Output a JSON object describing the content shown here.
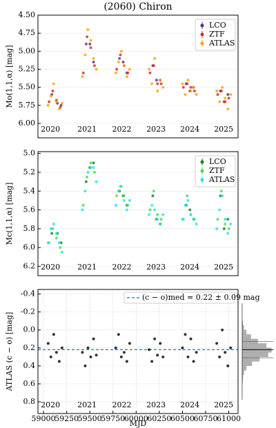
{
  "chart_data": [
    {
      "type": "scatter",
      "title": "(2060) Chiron",
      "ylabel": "Mo(1,1,α) [mag]",
      "xlim": [
        58940,
        61100
      ],
      "ylim": [
        4.5,
        6.2
      ],
      "y_inverted": true,
      "grid": true,
      "legend": "upper right",
      "yticks": [
        {
          "value": 4.5,
          "label": "4.50"
        },
        4.75,
        {
          "value": 5,
          "label": "5.00"
        },
        5.25,
        {
          "value": 5.5,
          "label": "5.50"
        },
        5.75,
        {
          "value": 6,
          "label": "6.00"
        }
      ],
      "annotations": [
        {
          "text": "2020",
          "x": 59075
        },
        {
          "text": "2021",
          "x": 59470
        },
        {
          "text": "2022",
          "x": 59845
        },
        {
          "text": "2023",
          "x": 60215
        },
        {
          "text": "2024",
          "x": 60580
        },
        {
          "text": "2025",
          "x": 60945
        }
      ],
      "series": [
        {
          "name": "LCO",
          "color": "#5b2a86",
          "x": [
            59090,
            59150,
            59190,
            59460,
            59500,
            59540,
            59820,
            59860,
            59900,
            60180,
            60220,
            60260,
            60540,
            60580,
            60620,
            60910,
            60950,
            60990
          ],
          "values": [
            5.6,
            5.72,
            5.75,
            4.9,
            4.9,
            5.15,
            5.1,
            5.15,
            5.3,
            5.2,
            5.4,
            5.4,
            5.45,
            5.55,
            5.5,
            5.55,
            5.7,
            5.6
          ]
        },
        {
          "name": "ZTF",
          "color": "#d62728",
          "x": [
            59060,
            59100,
            59140,
            59180,
            59430,
            59470,
            59510,
            59550,
            59790,
            59830,
            59870,
            59910,
            60150,
            60190,
            60230,
            60270,
            60510,
            60550,
            60590,
            60630,
            60880,
            60920,
            60960,
            61000
          ],
          "values": [
            5.7,
            5.55,
            5.68,
            5.78,
            5.3,
            4.8,
            4.95,
            5.2,
            5.25,
            5.05,
            5.2,
            5.3,
            5.3,
            5.2,
            5.45,
            5.45,
            5.5,
            5.45,
            5.5,
            5.55,
            5.6,
            5.55,
            5.7,
            5.65
          ]
        },
        {
          "name": "ATLAS",
          "color": "#f5a300",
          "x": [
            59050,
            59080,
            59110,
            59140,
            59170,
            59200,
            59420,
            59450,
            59480,
            59510,
            59540,
            59570,
            59780,
            59810,
            59840,
            59870,
            59900,
            59930,
            60140,
            60170,
            60200,
            60230,
            60260,
            60290,
            60500,
            60530,
            60560,
            60590,
            60620,
            60650,
            60870,
            60900,
            60930,
            60960,
            60990,
            61020
          ],
          "values": [
            5.75,
            5.62,
            5.45,
            5.7,
            5.8,
            5.72,
            5.35,
            5.05,
            4.7,
            4.85,
            5.1,
            5.25,
            5.3,
            5.15,
            5.0,
            5.2,
            5.35,
            5.25,
            5.25,
            5.45,
            5.1,
            5.55,
            5.4,
            5.5,
            5.45,
            5.6,
            5.4,
            5.55,
            5.5,
            5.6,
            5.55,
            5.7,
            5.5,
            5.65,
            5.8,
            5.6
          ]
        }
      ]
    },
    {
      "type": "scatter",
      "ylabel": "Mc(1,1,α) [mag]",
      "xlim": [
        58940,
        61100
      ],
      "ylim": [
        4.98,
        6.3
      ],
      "y_inverted": true,
      "grid": true,
      "legend": "upper right",
      "yticks": [
        {
          "value": 5,
          "label": "5.0"
        },
        5.2,
        5.4,
        5.6,
        5.8,
        {
          "value": 6,
          "label": "6.0"
        },
        6.2
      ],
      "annotations": [
        {
          "text": "2020",
          "x": 59075
        },
        {
          "text": "2021",
          "x": 59470
        },
        {
          "text": "2022",
          "x": 59845
        },
        {
          "text": "2023",
          "x": 60215
        },
        {
          "text": "2024",
          "x": 60580
        },
        {
          "text": "2025",
          "x": 60945
        }
      ],
      "series": [
        {
          "name": "LCO",
          "color": "#1e7b1e",
          "x": [
            59090,
            59150,
            59190,
            59460,
            59500,
            59540,
            59820,
            59860,
            59900,
            60180,
            60220,
            60260,
            60540,
            60580,
            60620,
            60910,
            60950,
            60990
          ],
          "values": [
            5.85,
            5.85,
            5.95,
            5.3,
            5.15,
            5.1,
            5.4,
            5.45,
            5.55,
            5.45,
            5.7,
            5.75,
            5.55,
            5.6,
            5.7,
            5.45,
            5.8,
            5.7
          ]
        },
        {
          "name": "ZTF",
          "color": "#4cd94c",
          "x": [
            59060,
            59100,
            59140,
            59180,
            59430,
            59470,
            59510,
            59550,
            59790,
            59830,
            59870,
            59910,
            60150,
            60190,
            60230,
            60270,
            60510,
            60550,
            60590,
            60630,
            60880,
            60920,
            60960,
            61000
          ],
          "values": [
            5.95,
            5.8,
            5.9,
            6.0,
            5.55,
            5.25,
            5.1,
            5.2,
            5.45,
            5.35,
            5.45,
            5.55,
            5.6,
            5.4,
            5.65,
            5.7,
            5.7,
            5.45,
            5.65,
            5.7,
            5.7,
            5.4,
            5.75,
            5.8
          ]
        },
        {
          "name": "ATLAS",
          "color": "#17e6f0",
          "x": [
            59050,
            59080,
            59110,
            59140,
            59170,
            59200,
            59420,
            59450,
            59480,
            59510,
            59540,
            59570,
            59780,
            59810,
            59840,
            59870,
            59900,
            59930,
            60140,
            60170,
            60200,
            60230,
            60260,
            60290,
            60500,
            60530,
            60560,
            60590,
            60620,
            60650,
            60870,
            60900,
            60930,
            60960,
            60990,
            61020
          ],
          "values": [
            5.95,
            5.8,
            5.75,
            5.85,
            5.95,
            6.05,
            5.6,
            5.4,
            5.2,
            5.15,
            5.15,
            5.3,
            5.55,
            5.4,
            5.35,
            5.5,
            5.6,
            5.5,
            5.65,
            5.55,
            5.6,
            5.7,
            5.75,
            5.65,
            5.7,
            5.55,
            5.5,
            5.65,
            5.7,
            5.75,
            5.8,
            5.6,
            5.45,
            5.7,
            5.85,
            5.75
          ]
        }
      ]
    },
    {
      "type": "scatter",
      "ylabel": "ATLAS (c − o) [mag]",
      "xlabel": "MJD",
      "xlim": [
        58940,
        61100
      ],
      "ylim": [
        -0.45,
        0.93
      ],
      "y_inverted": true,
      "grid": true,
      "legend": "upper center",
      "xticks": [
        59000,
        59250,
        59500,
        59750,
        60000,
        60250,
        60500,
        60750,
        61000
      ],
      "yticks": [
        -0.4,
        -0.2,
        {
          "value": 0,
          "label": "0.0"
        },
        0.2,
        0.4,
        0.6,
        0.8
      ],
      "annotations": [
        {
          "text": "2020",
          "x": 59075
        },
        {
          "text": "2021",
          "x": 59470
        },
        {
          "text": "2022",
          "x": 59845
        },
        {
          "text": "2023",
          "x": 60215
        },
        {
          "text": "2024",
          "x": 60580
        },
        {
          "text": "2025",
          "x": 60945
        }
      ],
      "hline": {
        "value": 0.22,
        "label": "(c − o)med = 0.22 ± 0.09 mag",
        "color": "#1f77b4"
      },
      "series": [
        {
          "color": "#000000",
          "x": [
            59050,
            59080,
            59110,
            59140,
            59170,
            59200,
            59420,
            59450,
            59480,
            59510,
            59540,
            59570,
            59780,
            59810,
            59840,
            59870,
            59900,
            59930,
            60140,
            60170,
            60200,
            60230,
            60260,
            60290,
            60500,
            60530,
            60560,
            60590,
            60620,
            60650,
            60870,
            60900,
            60930,
            60960,
            60990,
            61020
          ],
          "values": [
            0.15,
            0.3,
            0.05,
            0.25,
            0.35,
            0.2,
            0.25,
            0.4,
            0.2,
            0.3,
            0.1,
            0.28,
            0.2,
            0.05,
            0.3,
            0.25,
            0.35,
            0.15,
            0.22,
            0.35,
            0.1,
            0.28,
            0.15,
            0.3,
            0.2,
            0.05,
            0.3,
            0.1,
            0.35,
            0.25,
            0.15,
            0.3,
            0.0,
            0.25,
            0.4,
            0.2
          ]
        }
      ],
      "histogram": {
        "color": "#b0b0b0",
        "bins": [
          -0.1,
          -0.05,
          0,
          0.05,
          0.1,
          0.15,
          0.2,
          0.25,
          0.3,
          0.35,
          0.4,
          0.45,
          0.5,
          0.55,
          0.6
        ],
        "counts": [
          2,
          5,
          12,
          25,
          45,
          70,
          85,
          75,
          50,
          28,
          12,
          5,
          2,
          1
        ],
        "xlim": [
          0,
          90
        ],
        "lines": [
          0.13,
          0.22,
          0.31
        ]
      }
    }
  ]
}
